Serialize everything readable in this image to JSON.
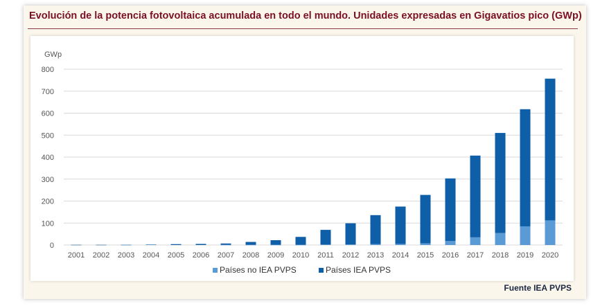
{
  "header": {
    "title": "Evolución de la potencia fotovoltaica acumulada en todo el mundo. Unidades expresadas en Gigavatios pico (GWp)"
  },
  "footer": {
    "source": "Fuente IEA PVPS"
  },
  "colors": {
    "title": "#7a1022",
    "non_iea": "#5b9bd5",
    "iea": "#0f5fa8",
    "grid": "#d9d9d9",
    "axis_text": "#555555"
  },
  "chart_data": {
    "type": "bar",
    "stacked": true,
    "title": "Evolución de la potencia fotovoltaica acumulada en todo el mundo. Unidades expresadas en Gigavatios pico (GWp)",
    "ylabel": "GWp",
    "xlabel": "",
    "ylim": [
      0,
      800
    ],
    "yticks": [
      0,
      100,
      200,
      300,
      400,
      500,
      600,
      700,
      800
    ],
    "categories": [
      "2001",
      "2002",
      "2003",
      "2004",
      "2005",
      "2006",
      "2007",
      "2008",
      "2009",
      "2010",
      "2011",
      "2012",
      "2013",
      "2014",
      "2015",
      "2016",
      "2017",
      "2018",
      "2019",
      "2020"
    ],
    "series": [
      {
        "name": "Países no IEA PVPS",
        "color": "#5b9bd5",
        "values": [
          0,
          0,
          0,
          0,
          0,
          0,
          1,
          1,
          1,
          1,
          2,
          3,
          4,
          5,
          8,
          18,
          35,
          55,
          85,
          112
        ]
      },
      {
        "name": "Países IEA PVPS",
        "color": "#0f5fa8",
        "values": [
          1,
          1,
          1,
          2,
          4,
          5,
          6,
          13,
          21,
          36,
          67,
          96,
          132,
          170,
          220,
          285,
          372,
          455,
          533,
          645
        ]
      }
    ],
    "legend_position": "bottom",
    "grid": true
  }
}
